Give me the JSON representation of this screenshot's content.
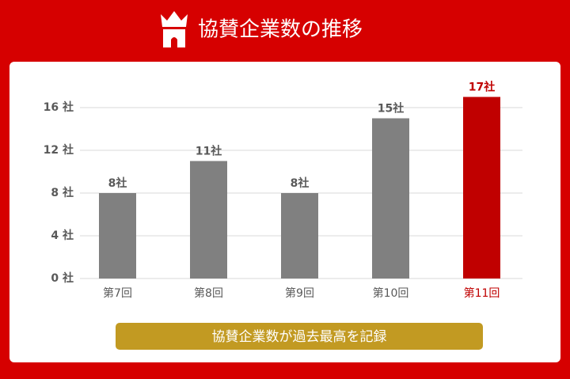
{
  "chart_data": {
    "type": "bar",
    "title": "協賛企業数の推移",
    "categories": [
      "第7回",
      "第8回",
      "第9回",
      "第10回",
      "第11回"
    ],
    "values": [
      8,
      11,
      8,
      15,
      17
    ],
    "value_labels": [
      "8社",
      "11社",
      "8社",
      "15社",
      "17社"
    ],
    "colors": [
      "#808080",
      "#808080",
      "#808080",
      "#808080",
      "#c00000"
    ],
    "ylim": [
      0,
      17
    ],
    "yticks": [
      {
        "value": 0,
        "label": "0 社"
      },
      {
        "value": 4,
        "label": "4 社"
      },
      {
        "value": 8,
        "label": "8 社"
      },
      {
        "value": 12,
        "label": "12 社"
      },
      {
        "value": 16,
        "label": "16 社"
      }
    ],
    "grid": true,
    "annotation": "協賛企業数が過去最高を記録"
  }
}
